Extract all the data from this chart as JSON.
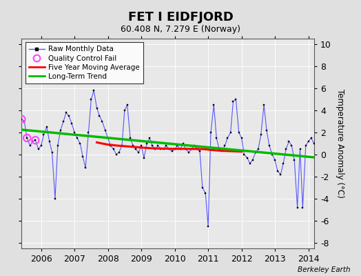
{
  "title": "FET I EIDFJORD",
  "subtitle": "60.408 N, 7.279 E (Norway)",
  "ylabel": "Temperature Anomaly (°C)",
  "attribution": "Berkeley Earth",
  "ylim": [
    -8.5,
    10.5
  ],
  "xlim": [
    2005.42,
    2014.17
  ],
  "yticks": [
    -8,
    -6,
    -4,
    -2,
    0,
    2,
    4,
    6,
    8,
    10
  ],
  "xticks": [
    2006,
    2007,
    2008,
    2009,
    2010,
    2011,
    2012,
    2013,
    2014
  ],
  "bg_color": "#e8e8e8",
  "fig_color": "#e0e0e0",
  "raw_color": "#5555ff",
  "ma_color": "#ff0000",
  "trend_color": "#00bb00",
  "qc_color": "#ff44ff",
  "raw_times": [
    2005.42,
    2005.5,
    2005.58,
    2005.67,
    2005.75,
    2005.83,
    2005.92,
    2006.0,
    2006.08,
    2006.17,
    2006.25,
    2006.33,
    2006.42,
    2006.5,
    2006.58,
    2006.67,
    2006.75,
    2006.83,
    2006.92,
    2007.0,
    2007.08,
    2007.17,
    2007.25,
    2007.33,
    2007.42,
    2007.5,
    2007.58,
    2007.67,
    2007.75,
    2007.83,
    2007.92,
    2008.0,
    2008.08,
    2008.17,
    2008.25,
    2008.33,
    2008.42,
    2008.5,
    2008.58,
    2008.67,
    2008.75,
    2008.83,
    2008.92,
    2009.0,
    2009.08,
    2009.17,
    2009.25,
    2009.33,
    2009.42,
    2009.5,
    2009.58,
    2009.67,
    2009.75,
    2009.83,
    2009.92,
    2010.0,
    2010.08,
    2010.17,
    2010.25,
    2010.33,
    2010.42,
    2010.5,
    2010.58,
    2010.67,
    2010.75,
    2010.83,
    2010.92,
    2011.0,
    2011.08,
    2011.17,
    2011.25,
    2011.33,
    2011.42,
    2011.5,
    2011.58,
    2011.67,
    2011.75,
    2011.83,
    2011.92,
    2012.0,
    2012.08,
    2012.17,
    2012.25,
    2012.33,
    2012.42,
    2012.5,
    2012.58,
    2012.67,
    2012.75,
    2012.83,
    2012.92,
    2013.0,
    2013.08,
    2013.17,
    2013.25,
    2013.33,
    2013.42,
    2013.5,
    2013.58,
    2013.67,
    2013.75,
    2013.83,
    2013.92,
    2014.0,
    2014.08,
    2014.17
  ],
  "raw_data": [
    3.2,
    3.0,
    1.5,
    0.8,
    1.2,
    1.3,
    0.5,
    0.8,
    1.8,
    2.5,
    1.2,
    0.2,
    -4.0,
    0.8,
    2.2,
    3.0,
    3.8,
    3.5,
    2.8,
    2.0,
    1.5,
    1.0,
    -0.2,
    -1.2,
    2.0,
    5.0,
    5.8,
    4.2,
    3.5,
    3.0,
    2.2,
    1.5,
    0.8,
    0.5,
    0.0,
    0.2,
    0.8,
    4.0,
    4.5,
    1.5,
    0.8,
    0.5,
    0.2,
    0.8,
    -0.3,
    1.0,
    1.5,
    0.8,
    0.5,
    0.8,
    0.5,
    0.5,
    0.8,
    0.5,
    0.3,
    0.5,
    0.8,
    0.5,
    1.0,
    0.5,
    0.2,
    0.5,
    0.8,
    0.5,
    0.3,
    -3.0,
    -3.5,
    -6.5,
    2.0,
    4.5,
    1.5,
    0.5,
    0.3,
    0.8,
    1.5,
    2.0,
    4.8,
    5.0,
    2.0,
    1.5,
    0.0,
    -0.3,
    -0.8,
    -0.5,
    0.2,
    0.5,
    1.8,
    4.5,
    2.2,
    0.8,
    0.0,
    -0.5,
    -1.5,
    -1.8,
    -0.8,
    0.5,
    1.2,
    0.8,
    -0.5,
    -4.8,
    0.5,
    -4.8,
    0.8,
    1.2,
    1.5,
    1.0
  ],
  "qc_times": [
    2005.42,
    2005.58,
    2005.83
  ],
  "qc_values": [
    3.2,
    1.5,
    1.3
  ],
  "ma_times": [
    2007.67,
    2007.75,
    2007.83,
    2007.92,
    2008.0,
    2008.08,
    2008.17,
    2008.25,
    2008.33,
    2008.42,
    2008.5,
    2008.58,
    2008.67,
    2008.75,
    2008.83,
    2008.92,
    2009.0,
    2009.08,
    2009.17,
    2009.25,
    2009.33,
    2009.42,
    2009.5,
    2009.58,
    2009.67,
    2009.75,
    2009.83,
    2009.92,
    2010.0,
    2010.08,
    2010.17,
    2010.25,
    2010.33,
    2010.42,
    2010.5,
    2010.58,
    2010.67,
    2010.75,
    2010.83,
    2010.92,
    2011.0,
    2011.08,
    2011.17,
    2011.25,
    2011.33,
    2011.42,
    2011.5,
    2011.58,
    2011.67,
    2011.75,
    2011.83,
    2011.92,
    2012.0
  ],
  "ma_vals": [
    1.1,
    1.05,
    1.0,
    0.95,
    0.9,
    0.88,
    0.85,
    0.82,
    0.8,
    0.78,
    0.76,
    0.74,
    0.72,
    0.7,
    0.68,
    0.66,
    0.64,
    0.62,
    0.6,
    0.58,
    0.57,
    0.56,
    0.55,
    0.55,
    0.54,
    0.54,
    0.53,
    0.52,
    0.52,
    0.52,
    0.52,
    0.52,
    0.52,
    0.51,
    0.51,
    0.51,
    0.51,
    0.5,
    0.5,
    0.48,
    0.45,
    0.42,
    0.4,
    0.38,
    0.36,
    0.34,
    0.33,
    0.32,
    0.31,
    0.3,
    0.29,
    0.28,
    0.27
  ],
  "trend_x": [
    2005.42,
    2014.17
  ],
  "trend_y": [
    2.25,
    -0.25
  ]
}
